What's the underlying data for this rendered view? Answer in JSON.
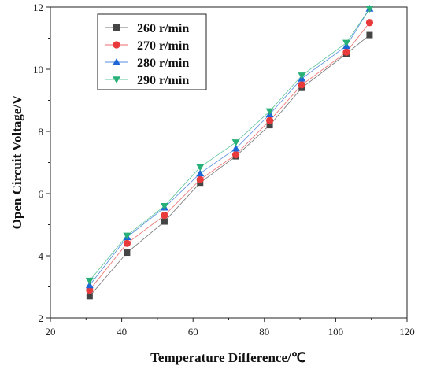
{
  "chart_data": {
    "type": "line",
    "xlabel": "Temperature Difference/℃",
    "ylabel": "Open Circuit Voltage/V",
    "xlim": [
      20,
      120
    ],
    "ylim": [
      2,
      12
    ],
    "xticks": [
      20,
      40,
      60,
      80,
      100,
      120
    ],
    "yticks": [
      2,
      4,
      6,
      8,
      10,
      12
    ],
    "grid": false,
    "legend_position": "top-left",
    "x": [
      31,
      41.5,
      52,
      62,
      72,
      81.5,
      90.5,
      103,
      109.5
    ],
    "series": [
      {
        "name": "260 r/min",
        "marker": "square",
        "color": "#454545",
        "values": [
          2.7,
          4.1,
          5.1,
          6.35,
          7.2,
          8.2,
          9.4,
          10.5,
          11.1
        ]
      },
      {
        "name": "270 r/min",
        "marker": "circle",
        "color": "#e8393b",
        "values": [
          2.9,
          4.4,
          5.3,
          6.45,
          7.25,
          8.35,
          9.5,
          10.55,
          11.5
        ]
      },
      {
        "name": "280 r/min",
        "marker": "triangle-up",
        "color": "#1e66d8",
        "values": [
          3.05,
          4.6,
          5.55,
          6.65,
          7.45,
          8.55,
          9.7,
          10.75,
          11.95
        ]
      },
      {
        "name": "290 r/min",
        "marker": "triangle-down",
        "color": "#27b077",
        "values": [
          3.2,
          4.65,
          5.6,
          6.85,
          7.65,
          8.65,
          9.8,
          10.85,
          11.95
        ]
      }
    ]
  }
}
